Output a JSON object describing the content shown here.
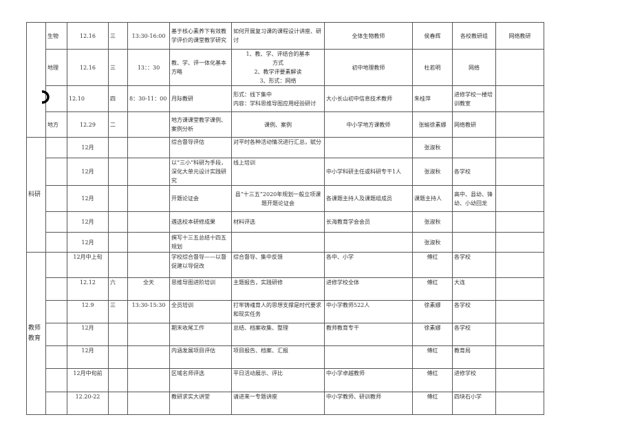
{
  "sections": [
    {
      "category": "",
      "rows": [
        [
          "生物",
          "12.16",
          "三",
          "13:30-16:00",
          "基于核心素养下有效教学评价的课堂教学研究",
          "如何开展复习课的课程设计讲座、研讨",
          "全体生物教师",
          "侯春辉",
          "各校教研组",
          "网络教研"
        ],
        [
          "地理",
          "12.16",
          "三",
          "13：：30",
          "教、学、评一体化基本方略",
          "1、教、学、评结合的基本\n方式\n2、教学评要素解读\n3、形式：网络",
          "初中地理教师",
          "杜若明",
          "网络",
          ""
        ],
        [
          "",
          "12.10",
          "四",
          "8：30-11：00",
          "月际教研",
          "形式：线下集中\n内容：学科思维导图应用经验研讨",
          "大小长山初中信息技术教师",
          "朱桂萍",
          "进修学校一楼培训教室",
          ""
        ],
        [
          "地方",
          "12.29",
          "二",
          "",
          "地方课课堂教学课例、案例分析",
          "课例、案例",
          "中小学地方课教师",
          "张瑜徐素娜",
          "网络教研",
          ""
        ]
      ]
    },
    {
      "category": "科研",
      "rows": [
        [
          "",
          "12月",
          "",
          "",
          "综合督导评估",
          "对平时各种活动情况进行汇总，赋分",
          "",
          "张淑秋",
          "",
          ""
        ],
        [
          "",
          "12月",
          "",
          "",
          "以“三小”科研为手段，深化大单元设计实践研究",
          "线上培训",
          "中小学科研主任或科研专干1人",
          "张淑秋",
          "各学校",
          ""
        ],
        [
          "",
          "12月",
          "",
          "",
          "开题论证会",
          "县“十三五”2020年规划一般立项课题开题论证会",
          "各课题主持人及课题组成员",
          "课题主持人",
          "高中、县幼、锋幼、小幼回龙",
          ""
        ],
        [
          "",
          "12月",
          "",
          "",
          "遴选校本研修成果",
          "材料评选",
          "长海教育学会会员",
          "张淑秋",
          "",
          ""
        ],
        [
          "",
          "12月",
          "",
          "",
          "撰写十三五总结十四五规划",
          "",
          "",
          "张淑秋",
          "",
          ""
        ]
      ]
    },
    {
      "category": "教师\n教育",
      "rows": [
        [
          "",
          "12月中上旬",
          "",
          "",
          "学校综合督导——以督促建以导促改",
          "综合督导、集中反馈",
          "各中、小学",
          "傅红",
          "各学校",
          ""
        ],
        [
          "",
          "12.12",
          "六",
          "全天",
          "思维导图进阶培训",
          "主题报告，实践研修",
          "进修学校全体",
          "傅红",
          "大连",
          ""
        ],
        [
          "",
          "12.9",
          "三",
          "13:30-15:30",
          "全员培训",
          "打牢铸魂育人的思想支撑是时代要求和现实任务",
          "中小学教师522人",
          "徐素娜",
          "各学校",
          ""
        ],
        [
          "",
          "12月",
          "",
          "",
          "期末收尾工作",
          "总结、档案收集、整理",
          "教师教育专干",
          "徐素娜",
          "各学校",
          ""
        ],
        [
          "",
          "12月",
          "",
          "",
          "内涵发展项目评估",
          "项目报告、档案、汇报",
          "",
          "傅红",
          "教育局",
          ""
        ],
        [
          "",
          "12月中旬前",
          "",
          "",
          "区域名师评选",
          "平日活动展示、评比",
          "中小学卓越教师",
          "傅红",
          "进修学校",
          ""
        ],
        [
          "",
          "12.20-22",
          "",
          "",
          "教研求实大讲堂",
          "请进来一专题讲座",
          "中小学教师、研训教师",
          "傅红",
          "四块石小学",
          ""
        ]
      ]
    }
  ]
}
